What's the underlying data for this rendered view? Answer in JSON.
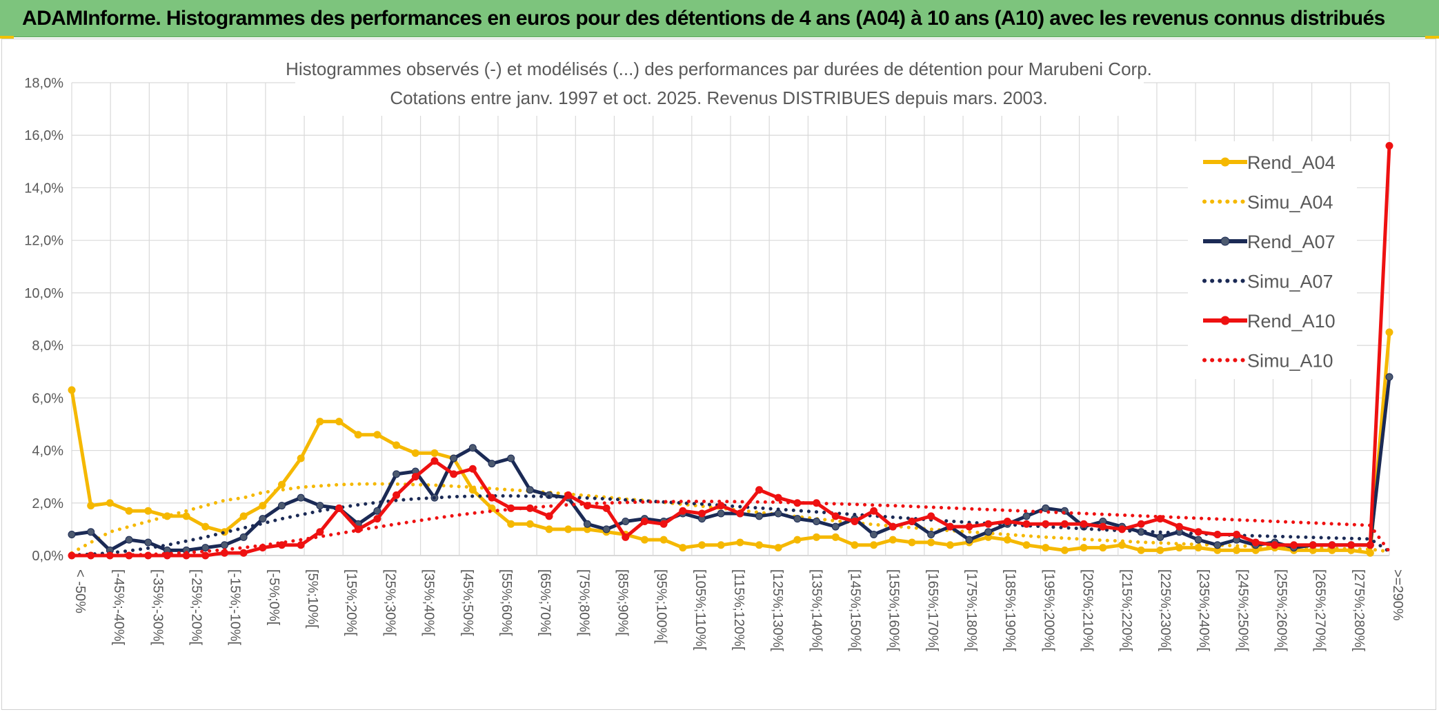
{
  "banner": {
    "title": "ADAMInforme. Histogrammes des performances en euros pour des détentions de 4 ans (A04) à 10 ans (A10) avec les revenus connus distribués"
  },
  "colors": {
    "banner": "#7dc47d",
    "A04": "#f5b800",
    "A07": "#1b2a55",
    "A10": "#ee1111",
    "grid": "#d9d9d9",
    "text": "#595959"
  },
  "chart_data": {
    "type": "line",
    "title": "Histogrammes observés (-) et modélisés (...) des performances par durées de détention pour Marubeni Corp.",
    "subtitle": "Cotations entre janv. 1997 et oct. 2025. Revenus DISTRIBUES depuis mars. 2003.",
    "ylim": [
      0,
      0.18
    ],
    "y_ticks": [
      "0,0%",
      "2,0%",
      "4,0%",
      "6,0%",
      "8,0%",
      "10,0%",
      "12,0%",
      "14,0%",
      "16,0%",
      "18,0%"
    ],
    "x_tick_labels": [
      "< -50%",
      "[-45%;-40%[",
      "[-35%;-30%[",
      "[-25%;-20%[",
      "[-15%;-10%[",
      "[-5%;0%[",
      "[5%;10%[",
      "[15%;20%[",
      "[25%;30%[",
      "[35%;40%[",
      "[45%;50%[",
      "[55%;60%[",
      "[65%;70%[",
      "[75%;80%[",
      "[85%;90%[",
      "[95%;100%[",
      "[105%;110%[",
      "[115%;120%[",
      "[125%;130%[",
      "[135%;140%[",
      "[145%;150%[",
      "[155%;160%[",
      "[165%;170%[",
      "[175%;180%[",
      "[185%;190%[",
      "[195%;200%[",
      "[205%;210%[",
      "[215%;220%[",
      "[225%;230%[",
      "[235%;240%[",
      "[245%;250%[",
      "[255%;260%[",
      "[265%;270%[",
      "[275%;280%[",
      ">=290%"
    ],
    "legend_position": "right",
    "grid": true,
    "series": [
      {
        "name": "Rend_A04",
        "style": "solid-markers",
        "color": "#f5b800",
        "values": [
          0.063,
          0.019,
          0.02,
          0.017,
          0.017,
          0.015,
          0.015,
          0.011,
          0.009,
          0.015,
          0.019,
          0.027,
          0.037,
          0.051,
          0.051,
          0.046,
          0.046,
          0.042,
          0.039,
          0.039,
          0.037,
          0.025,
          0.018,
          0.012,
          0.012,
          0.01,
          0.01,
          0.01,
          0.009,
          0.008,
          0.006,
          0.006,
          0.003,
          0.004,
          0.004,
          0.005,
          0.004,
          0.003,
          0.006,
          0.007,
          0.007,
          0.004,
          0.004,
          0.006,
          0.005,
          0.005,
          0.004,
          0.005,
          0.007,
          0.006,
          0.004,
          0.003,
          0.002,
          0.003,
          0.003,
          0.004,
          0.002,
          0.002,
          0.003,
          0.003,
          0.002,
          0.002,
          0.002,
          0.003,
          0.002,
          0.002,
          0.002,
          0.002,
          0.001,
          0.085
        ]
      },
      {
        "name": "Simu_A04",
        "style": "dotted",
        "color": "#f5b800",
        "values": [
          0.001,
          0.005,
          0.009,
          0.011,
          0.013,
          0.015,
          0.017,
          0.019,
          0.021,
          0.022,
          0.024,
          0.025,
          0.026,
          0.0265,
          0.027,
          0.0272,
          0.0273,
          0.0272,
          0.027,
          0.0268,
          0.0264,
          0.026,
          0.0255,
          0.025,
          0.0245,
          0.024,
          0.0234,
          0.0228,
          0.0222,
          0.0215,
          0.021,
          0.0202,
          0.0195,
          0.0188,
          0.018,
          0.0172,
          0.0164,
          0.0156,
          0.0148,
          0.014,
          0.0132,
          0.0125,
          0.0118,
          0.0112,
          0.0106,
          0.01,
          0.0095,
          0.009,
          0.0085,
          0.008,
          0.0075,
          0.007,
          0.0066,
          0.0062,
          0.0058,
          0.0055,
          0.0051,
          0.0048,
          0.0045,
          0.0042,
          0.004,
          0.0037,
          0.0035,
          0.0033,
          0.0031,
          0.0029,
          0.0027,
          0.0025,
          0.0024,
          0.0015
        ]
      },
      {
        "name": "Rend_A07",
        "style": "solid-markers",
        "color": "#1b2a55",
        "values": [
          0.008,
          0.009,
          0.002,
          0.006,
          0.005,
          0.002,
          0.002,
          0.003,
          0.004,
          0.007,
          0.014,
          0.019,
          0.022,
          0.019,
          0.018,
          0.012,
          0.017,
          0.031,
          0.032,
          0.022,
          0.037,
          0.041,
          0.035,
          0.037,
          0.025,
          0.023,
          0.022,
          0.012,
          0.01,
          0.013,
          0.014,
          0.013,
          0.016,
          0.014,
          0.016,
          0.016,
          0.015,
          0.016,
          0.014,
          0.013,
          0.011,
          0.014,
          0.008,
          0.011,
          0.013,
          0.008,
          0.011,
          0.006,
          0.009,
          0.012,
          0.015,
          0.018,
          0.017,
          0.011,
          0.013,
          0.011,
          0.009,
          0.007,
          0.009,
          0.006,
          0.004,
          0.006,
          0.004,
          0.005,
          0.003,
          0.004,
          0.004,
          0.004,
          0.004,
          0.068
        ]
      },
      {
        "name": "Simu_A07",
        "style": "dotted",
        "color": "#1b2a55",
        "values": [
          0.0002,
          0.0005,
          0.001,
          0.0018,
          0.0028,
          0.004,
          0.0055,
          0.007,
          0.0088,
          0.0105,
          0.0122,
          0.014,
          0.0155,
          0.017,
          0.0182,
          0.0193,
          0.0202,
          0.021,
          0.0216,
          0.022,
          0.0224,
          0.0226,
          0.0227,
          0.0227,
          0.0226,
          0.0224,
          0.0222,
          0.0219,
          0.0216,
          0.0212,
          0.0208,
          0.0204,
          0.02,
          0.0196,
          0.0191,
          0.0186,
          0.0181,
          0.0176,
          0.0171,
          0.0166,
          0.0161,
          0.0156,
          0.0151,
          0.0146,
          0.0141,
          0.0136,
          0.0131,
          0.0126,
          0.0122,
          0.0118,
          0.0114,
          0.011,
          0.0106,
          0.0102,
          0.0098,
          0.0095,
          0.0092,
          0.0089,
          0.0086,
          0.0083,
          0.008,
          0.0077,
          0.0075,
          0.0073,
          0.0071,
          0.0069,
          0.0067,
          0.0065,
          0.0063,
          0.0015
        ]
      },
      {
        "name": "Rend_A10",
        "style": "solid-markers",
        "color": "#ee1111",
        "values": [
          0.0,
          0.0,
          0.0,
          0.0,
          0.0,
          0.0,
          0.0,
          0.0,
          0.001,
          0.001,
          0.003,
          0.004,
          0.004,
          0.009,
          0.018,
          0.01,
          0.014,
          0.023,
          0.03,
          0.036,
          0.031,
          0.033,
          0.022,
          0.018,
          0.018,
          0.015,
          0.023,
          0.019,
          0.018,
          0.007,
          0.013,
          0.012,
          0.017,
          0.016,
          0.019,
          0.016,
          0.025,
          0.022,
          0.02,
          0.02,
          0.015,
          0.013,
          0.017,
          0.011,
          0.013,
          0.015,
          0.011,
          0.011,
          0.012,
          0.013,
          0.012,
          0.012,
          0.012,
          0.012,
          0.011,
          0.01,
          0.012,
          0.014,
          0.011,
          0.009,
          0.008,
          0.008,
          0.005,
          0.004,
          0.004,
          0.004,
          0.004,
          0.004,
          0.004,
          0.156
        ]
      },
      {
        "name": "Simu_A10",
        "style": "dotted",
        "color": "#ee1111",
        "values": [
          0.0,
          0.0,
          0.0001,
          0.0002,
          0.0004,
          0.0007,
          0.0011,
          0.0016,
          0.0022,
          0.003,
          0.0039,
          0.0049,
          0.006,
          0.0072,
          0.0084,
          0.0096,
          0.0108,
          0.012,
          0.0131,
          0.0142,
          0.0152,
          0.0161,
          0.0169,
          0.0176,
          0.0182,
          0.0188,
          0.0193,
          0.0197,
          0.02,
          0.0202,
          0.0204,
          0.0205,
          0.0206,
          0.0206,
          0.0206,
          0.0205,
          0.0204,
          0.0203,
          0.0201,
          0.0199,
          0.0197,
          0.0195,
          0.0192,
          0.019,
          0.0187,
          0.0184,
          0.0181,
          0.0178,
          0.0175,
          0.0172,
          0.0169,
          0.0166,
          0.0163,
          0.016,
          0.0157,
          0.0154,
          0.0151,
          0.0148,
          0.0145,
          0.0142,
          0.0139,
          0.0136,
          0.0133,
          0.013,
          0.0127,
          0.0124,
          0.0121,
          0.0118,
          0.0115,
          0.0015
        ]
      }
    ]
  }
}
